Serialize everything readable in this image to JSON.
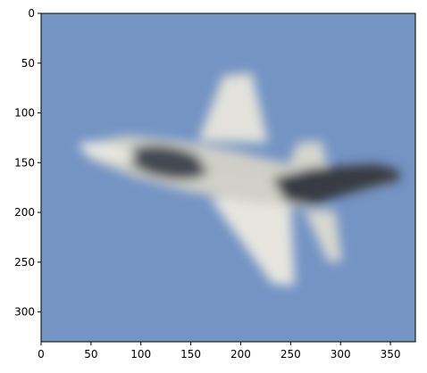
{
  "chart_data": {
    "type": "image",
    "title": "",
    "xlabel": "",
    "ylabel": "",
    "xlim": [
      0,
      375
    ],
    "ylim": [
      330,
      0
    ],
    "x_ticks": [
      0,
      50,
      100,
      150,
      200,
      250,
      300,
      350
    ],
    "y_ticks": [
      0,
      50,
      100,
      150,
      200,
      250,
      300
    ],
    "grid": false,
    "image_description": "blurred photo of a fighter jet flying diagonally against a blue sky"
  },
  "colors": {
    "sky": "#7494c4",
    "jet_light": "#dcdcd4",
    "jet_dark": "#3c4048"
  }
}
